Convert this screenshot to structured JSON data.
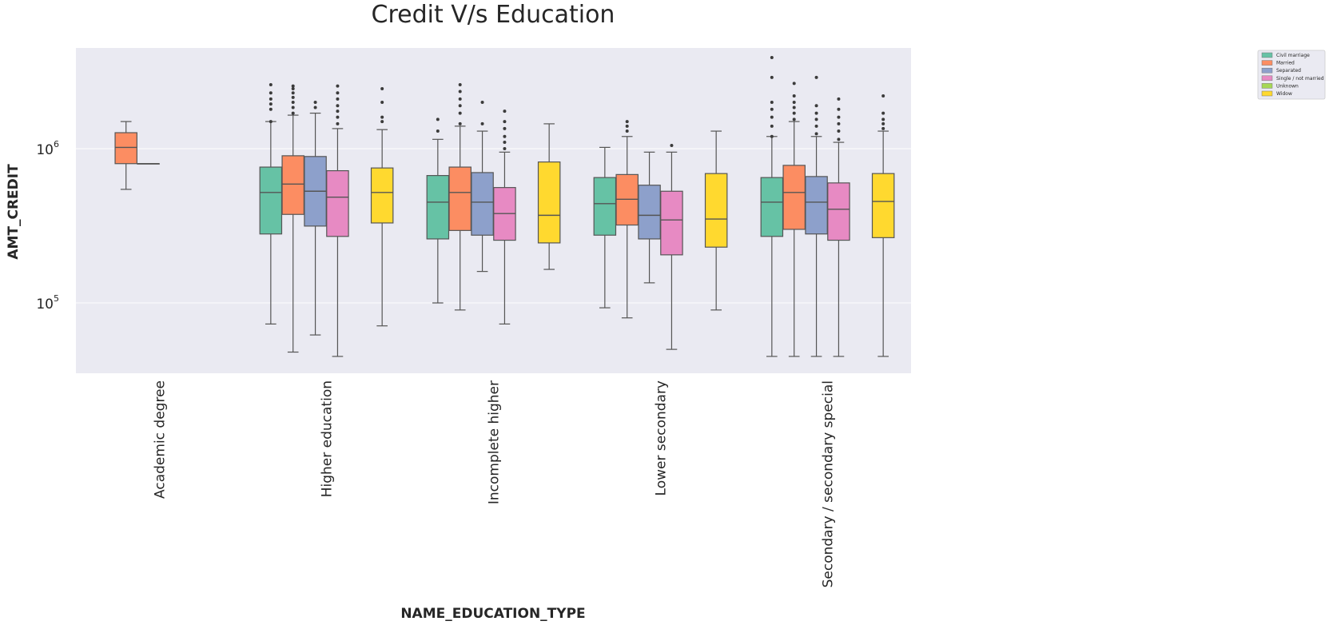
{
  "chart_data": {
    "type": "box",
    "title": "Credit V/s Education",
    "xlabel": "NAME_EDUCATION_TYPE",
    "ylabel": "AMT_CREDIT",
    "y_scale": "log",
    "ylim": [
      35000,
      4500000
    ],
    "y_ticks": [
      {
        "value": 100000,
        "base": "10",
        "exp": "5"
      },
      {
        "value": 1000000,
        "base": "10",
        "exp": "6"
      }
    ],
    "grid": true,
    "legend_position": "upper-right",
    "categories": [
      "Academic degree",
      "Higher education",
      "Incomplete higher",
      "Lower secondary",
      "Secondary / secondary special"
    ],
    "series": [
      {
        "name": "Civil marriage",
        "color": "#66c2a5",
        "boxes": [
          null,
          {
            "whislo": 73000,
            "q1": 280000,
            "med": 520000,
            "q3": 760000,
            "whishi": 1500000,
            "fliers": [
              1500000,
              1800000,
              1950000,
              2100000,
              2300000,
              2600000
            ]
          },
          {
            "whislo": 100000,
            "q1": 260000,
            "med": 450000,
            "q3": 670000,
            "whishi": 1150000,
            "fliers": [
              1300000,
              1550000
            ]
          },
          {
            "whislo": 93000,
            "q1": 275000,
            "med": 440000,
            "q3": 650000,
            "whishi": 1020000,
            "fliers": []
          },
          {
            "whislo": 45000,
            "q1": 270000,
            "med": 450000,
            "q3": 650000,
            "whishi": 1200000,
            "fliers": [
              1200000,
              1400000,
              1600000,
              1800000,
              2000000,
              2900000,
              3900000
            ]
          }
        ]
      },
      {
        "name": "Married",
        "color": "#fc8d62",
        "boxes": [
          {
            "whislo": 545000,
            "q1": 800000,
            "med": 1020000,
            "q3": 1270000,
            "whishi": 1500000,
            "fliers": []
          },
          {
            "whislo": 48000,
            "q1": 375000,
            "med": 590000,
            "q3": 900000,
            "whishi": 1650000,
            "fliers": [
              1700000,
              1850000,
              2000000,
              2150000,
              2300000,
              2450000,
              2550000
            ]
          },
          {
            "whislo": 90000,
            "q1": 295000,
            "med": 520000,
            "q3": 760000,
            "whishi": 1400000,
            "fliers": [
              1450000,
              1700000,
              1900000,
              2100000,
              2350000,
              2600000
            ]
          },
          {
            "whislo": 80000,
            "q1": 320000,
            "med": 470000,
            "q3": 680000,
            "whishi": 1200000,
            "fliers": [
              1300000,
              1400000,
              1500000
            ]
          },
          {
            "whislo": 45000,
            "q1": 300000,
            "med": 520000,
            "q3": 780000,
            "whishi": 1500000,
            "fliers": [
              1550000,
              1700000,
              1850000,
              2000000,
              2200000,
              2650000
            ]
          }
        ]
      },
      {
        "name": "Separated",
        "color": "#8da0cb",
        "boxes": [
          {
            "whislo": 800000,
            "q1": 800000,
            "med": 800000,
            "q3": 800000,
            "whishi": 800000,
            "fliers": []
          },
          {
            "whislo": 62000,
            "q1": 315000,
            "med": 530000,
            "q3": 890000,
            "whishi": 1700000,
            "fliers": [
              1850000,
              2000000
            ]
          },
          {
            "whislo": 160000,
            "q1": 275000,
            "med": 450000,
            "q3": 700000,
            "whishi": 1300000,
            "fliers": [
              1450000,
              2000000
            ]
          },
          {
            "whislo": 135000,
            "q1": 260000,
            "med": 370000,
            "q3": 580000,
            "whishi": 950000,
            "fliers": []
          },
          {
            "whislo": 45000,
            "q1": 280000,
            "med": 450000,
            "q3": 660000,
            "whishi": 1200000,
            "fliers": [
              1250000,
              1400000,
              1550000,
              1700000,
              1900000,
              2900000
            ]
          }
        ]
      },
      {
        "name": "Single / not married",
        "color": "#e78ac3",
        "boxes": [
          null,
          {
            "whislo": 45000,
            "q1": 270000,
            "med": 485000,
            "q3": 720000,
            "whishi": 1350000,
            "fliers": [
              1450000,
              1600000,
              1750000,
              1900000,
              2100000,
              2300000,
              2550000
            ]
          },
          {
            "whislo": 73000,
            "q1": 255000,
            "med": 380000,
            "q3": 560000,
            "whishi": 950000,
            "fliers": [
              1000000,
              1100000,
              1200000,
              1350000,
              1500000,
              1750000
            ]
          },
          {
            "whislo": 50000,
            "q1": 205000,
            "med": 345000,
            "q3": 530000,
            "whishi": 950000,
            "fliers": [
              1050000
            ]
          },
          {
            "whislo": 45000,
            "q1": 255000,
            "med": 405000,
            "q3": 600000,
            "whishi": 1100000,
            "fliers": [
              1150000,
              1300000,
              1450000,
              1600000,
              1800000,
              2100000
            ]
          }
        ]
      },
      {
        "name": "Unknown",
        "color": "#a6d854",
        "boxes": [
          null,
          null,
          null,
          null,
          null
        ]
      },
      {
        "name": "Widow",
        "color": "#ffd92f",
        "boxes": [
          null,
          {
            "whislo": 71000,
            "q1": 330000,
            "med": 520000,
            "q3": 750000,
            "whishi": 1330000,
            "fliers": [
              1500000,
              1600000,
              2000000,
              2450000
            ]
          },
          {
            "whislo": 165000,
            "q1": 245000,
            "med": 370000,
            "q3": 820000,
            "whishi": 1450000,
            "fliers": []
          },
          {
            "whislo": 90000,
            "q1": 230000,
            "med": 350000,
            "q3": 690000,
            "whishi": 1300000,
            "fliers": []
          },
          {
            "whislo": 45000,
            "q1": 265000,
            "med": 455000,
            "q3": 690000,
            "whishi": 1300000,
            "fliers": [
              1350000,
              1450000,
              1550000,
              1700000,
              2200000
            ]
          }
        ]
      }
    ]
  }
}
